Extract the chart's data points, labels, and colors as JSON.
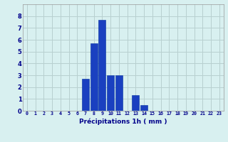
{
  "categories": [
    0,
    1,
    2,
    3,
    4,
    5,
    6,
    7,
    8,
    9,
    10,
    11,
    12,
    13,
    14,
    15,
    16,
    17,
    18,
    19,
    20,
    21,
    22,
    23
  ],
  "values": [
    0,
    0,
    0,
    0,
    0,
    0,
    0,
    2.7,
    5.7,
    7.7,
    3.0,
    3.0,
    0,
    1.3,
    0.5,
    0,
    0,
    0,
    0,
    0,
    0,
    0,
    0,
    0
  ],
  "bar_color": "#1a40c0",
  "bar_edge_color": "#0030a0",
  "background_color": "#d8f0f0",
  "grid_color": "#b8d0d0",
  "xlabel": "Précipitations 1h ( mm )",
  "xlabel_color": "#00008b",
  "xlabel_fontsize": 6.5,
  "tick_color": "#00008b",
  "tick_fontsize_x": 4.8,
  "tick_fontsize_y": 6.0,
  "ylim": [
    0,
    9
  ],
  "yticks": [
    0,
    1,
    2,
    3,
    4,
    5,
    6,
    7,
    8
  ],
  "xticks": [
    0,
    1,
    2,
    3,
    4,
    5,
    6,
    7,
    8,
    9,
    10,
    11,
    12,
    13,
    14,
    15,
    16,
    17,
    18,
    19,
    20,
    21,
    22,
    23
  ],
  "xlim": [
    -0.5,
    23.5
  ]
}
